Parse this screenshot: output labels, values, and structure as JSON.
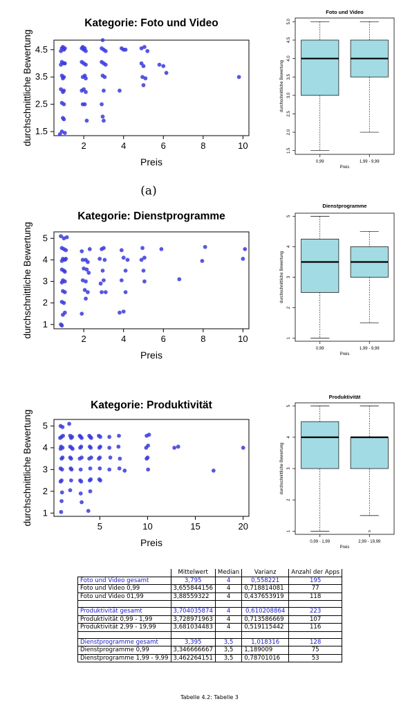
{
  "chart_data": [
    {
      "type": "scatter",
      "title": "Kategorie: Foto und Video",
      "xlabel": "Preis",
      "ylabel": "durchschnittliche Bewertung",
      "xticks": [
        "2",
        "4",
        "6",
        "8",
        "10"
      ],
      "yticks": [
        "1.5",
        "2.5",
        "3.5",
        "4.5"
      ],
      "xlim": [
        0.5,
        10.3
      ],
      "ylim": [
        1.35,
        4.85
      ],
      "points": [
        [
          0.9,
          4.55
        ],
        [
          1.0,
          4.5
        ],
        [
          0.85,
          4.45
        ],
        [
          0.95,
          4.6
        ],
        [
          1.05,
          4.55
        ],
        [
          0.9,
          4.05
        ],
        [
          1.0,
          4.0
        ],
        [
          0.85,
          3.95
        ],
        [
          1.05,
          4.0
        ],
        [
          0.9,
          3.55
        ],
        [
          1.0,
          3.5
        ],
        [
          0.95,
          3.45
        ],
        [
          0.85,
          3.05
        ],
        [
          1.0,
          3.0
        ],
        [
          0.95,
          2.95
        ],
        [
          0.9,
          2.55
        ],
        [
          1.0,
          2.5
        ],
        [
          0.95,
          2.0
        ],
        [
          1.0,
          1.95
        ],
        [
          0.9,
          1.5
        ],
        [
          1.05,
          1.45
        ],
        [
          0.8,
          1.4
        ],
        [
          1.9,
          4.55
        ],
        [
          2.0,
          4.5
        ],
        [
          2.1,
          4.45
        ],
        [
          1.95,
          4.6
        ],
        [
          2.05,
          4.55
        ],
        [
          1.9,
          4.05
        ],
        [
          2.0,
          4.0
        ],
        [
          2.1,
          3.95
        ],
        [
          1.95,
          3.5
        ],
        [
          2.05,
          3.55
        ],
        [
          2.1,
          3.45
        ],
        [
          1.9,
          3.0
        ],
        [
          2.0,
          3.05
        ],
        [
          2.1,
          2.95
        ],
        [
          1.95,
          2.5
        ],
        [
          2.05,
          2.5
        ],
        [
          2.15,
          1.9
        ],
        [
          2.9,
          4.55
        ],
        [
          3.0,
          4.5
        ],
        [
          3.1,
          4.45
        ],
        [
          2.95,
          4.85
        ],
        [
          2.9,
          4.05
        ],
        [
          3.0,
          4.0
        ],
        [
          3.1,
          3.95
        ],
        [
          2.95,
          3.55
        ],
        [
          3.05,
          3.5
        ],
        [
          3.0,
          3.0
        ],
        [
          2.9,
          2.5
        ],
        [
          2.95,
          2.05
        ],
        [
          3.0,
          1.9
        ],
        [
          3.9,
          4.55
        ],
        [
          4.0,
          4.5
        ],
        [
          4.1,
          4.5
        ],
        [
          3.8,
          3.0
        ],
        [
          4.9,
          4.55
        ],
        [
          5.05,
          4.6
        ],
        [
          5.2,
          4.45
        ],
        [
          4.9,
          4.0
        ],
        [
          5.0,
          3.9
        ],
        [
          4.95,
          3.5
        ],
        [
          5.1,
          3.45
        ],
        [
          5.0,
          3.2
        ],
        [
          5.8,
          3.95
        ],
        [
          6.0,
          3.9
        ],
        [
          6.15,
          3.65
        ],
        [
          9.8,
          3.5
        ]
      ]
    },
    {
      "type": "box",
      "title": "Foto und Video",
      "xlabel": "Preis",
      "ylabel": "durchschnittliche Bewertung",
      "categories": [
        "0,99",
        "1,99 - 9,99"
      ],
      "yticks": [
        "1.5",
        "2.0",
        "2.5",
        "3.0",
        "3.5",
        "4.0",
        "4.5",
        "5.0"
      ],
      "ylim": [
        1.4,
        5.1
      ],
      "boxes": [
        {
          "min": 1.5,
          "q1": 3.0,
          "median": 4.0,
          "q3": 4.5,
          "max": 5.0,
          "outliers": []
        },
        {
          "min": 2.0,
          "q1": 3.5,
          "median": 4.0,
          "q3": 4.5,
          "max": 5.0,
          "outliers": []
        }
      ],
      "box_color": "#a2dbe3"
    },
    {
      "type": "scatter",
      "title": "Kategorie: Dienstprogramme",
      "xlabel": "Preis",
      "ylabel": "durchschnittliche Bewertung",
      "xticks": [
        "2",
        "4",
        "6",
        "8",
        "10"
      ],
      "yticks": [
        "1",
        "2",
        "3",
        "4",
        "5"
      ],
      "xlim": [
        0.5,
        10.3
      ],
      "ylim": [
        0.8,
        5.3
      ],
      "points": [
        [
          0.85,
          5.1
        ],
        [
          1.0,
          5.0
        ],
        [
          1.15,
          5.05
        ],
        [
          0.9,
          4.55
        ],
        [
          1.0,
          4.5
        ],
        [
          1.1,
          4.45
        ],
        [
          0.95,
          4.05
        ],
        [
          1.05,
          4.0
        ],
        [
          0.9,
          3.95
        ],
        [
          1.1,
          4.05
        ],
        [
          0.9,
          3.55
        ],
        [
          1.0,
          3.5
        ],
        [
          1.05,
          3.45
        ],
        [
          0.95,
          3.05
        ],
        [
          1.05,
          3.0
        ],
        [
          0.9,
          2.95
        ],
        [
          0.95,
          2.55
        ],
        [
          1.05,
          2.5
        ],
        [
          0.9,
          2.05
        ],
        [
          1.0,
          2.0
        ],
        [
          1.05,
          1.55
        ],
        [
          0.95,
          1.45
        ],
        [
          0.85,
          1.0
        ],
        [
          0.9,
          0.95
        ],
        [
          1.9,
          4.4
        ],
        [
          2.3,
          4.5
        ],
        [
          1.95,
          4.0
        ],
        [
          2.1,
          4.0
        ],
        [
          2.2,
          3.9
        ],
        [
          2.0,
          3.6
        ],
        [
          2.15,
          3.55
        ],
        [
          2.25,
          3.4
        ],
        [
          1.95,
          3.05
        ],
        [
          2.1,
          3.0
        ],
        [
          2.05,
          2.6
        ],
        [
          2.2,
          2.5
        ],
        [
          2.1,
          2.2
        ],
        [
          1.9,
          1.5
        ],
        [
          2.9,
          4.5
        ],
        [
          3.0,
          4.55
        ],
        [
          2.8,
          4.05
        ],
        [
          3.05,
          4.0
        ],
        [
          2.95,
          3.5
        ],
        [
          3.0,
          3.05
        ],
        [
          2.85,
          2.9
        ],
        [
          3.1,
          2.5
        ],
        [
          2.9,
          2.5
        ],
        [
          3.9,
          4.45
        ],
        [
          4.0,
          4.1
        ],
        [
          4.2,
          4.0
        ],
        [
          4.1,
          3.5
        ],
        [
          3.9,
          3.05
        ],
        [
          4.1,
          2.5
        ],
        [
          4.0,
          1.6
        ],
        [
          3.8,
          1.55
        ],
        [
          4.95,
          4.55
        ],
        [
          5.05,
          4.1
        ],
        [
          4.9,
          4.0
        ],
        [
          5.0,
          3.5
        ],
        [
          5.05,
          3.0
        ],
        [
          5.9,
          4.5
        ],
        [
          6.8,
          3.1
        ],
        [
          8.1,
          4.6
        ],
        [
          7.95,
          3.95
        ],
        [
          10.1,
          4.5
        ],
        [
          10.0,
          4.05
        ]
      ]
    },
    {
      "type": "box",
      "title": "Dienstprogramme",
      "xlabel": "Preis",
      "ylabel": "durchschnittliche Bewertung",
      "categories": [
        "0,99",
        "1,99 - 9,99"
      ],
      "yticks": [
        "1",
        "2",
        "3",
        "4",
        "5"
      ],
      "ylim": [
        0.9,
        5.1
      ],
      "boxes": [
        {
          "min": 1.0,
          "q1": 2.5,
          "median": 3.5,
          "q3": 4.25,
          "max": 5.0,
          "outliers": []
        },
        {
          "min": 1.5,
          "q1": 3.0,
          "median": 3.5,
          "q3": 4.0,
          "max": 4.5,
          "outliers": []
        }
      ],
      "box_color": "#a2dbe3"
    },
    {
      "type": "scatter",
      "title": "Kategorie: Produktivität",
      "xlabel": "Preis",
      "ylabel": "durchschnittliche Bewertung",
      "xticks": [
        "5",
        "10",
        "15",
        "20"
      ],
      "yticks": [
        "1",
        "2",
        "3",
        "4",
        "5"
      ],
      "xlim": [
        0.2,
        20.6
      ],
      "ylim": [
        0.85,
        5.3
      ],
      "points": [
        [
          0.9,
          5.0
        ],
        [
          1.1,
          4.95
        ],
        [
          1.0,
          4.5
        ],
        [
          1.15,
          4.55
        ],
        [
          0.85,
          4.45
        ],
        [
          0.95,
          4.05
        ],
        [
          1.1,
          4.0
        ],
        [
          0.9,
          3.95
        ],
        [
          1.0,
          3.5
        ],
        [
          1.1,
          3.55
        ],
        [
          0.9,
          3.05
        ],
        [
          1.05,
          3.0
        ],
        [
          1.0,
          2.5
        ],
        [
          0.9,
          2.45
        ],
        [
          1.05,
          1.95
        ],
        [
          1.0,
          1.55
        ],
        [
          0.95,
          1.05
        ],
        [
          1.8,
          5.1
        ],
        [
          1.9,
          4.55
        ],
        [
          2.1,
          4.5
        ],
        [
          2.0,
          4.45
        ],
        [
          1.9,
          4.05
        ],
        [
          2.05,
          4.0
        ],
        [
          2.15,
          3.95
        ],
        [
          2.0,
          3.5
        ],
        [
          1.9,
          3.55
        ],
        [
          2.05,
          3.0
        ],
        [
          1.95,
          3.05
        ],
        [
          2.0,
          2.5
        ],
        [
          1.9,
          2.05
        ],
        [
          2.9,
          4.55
        ],
        [
          3.0,
          4.5
        ],
        [
          3.1,
          4.45
        ],
        [
          2.95,
          4.0
        ],
        [
          3.05,
          4.05
        ],
        [
          2.9,
          3.5
        ],
        [
          3.1,
          3.55
        ],
        [
          3.0,
          3.0
        ],
        [
          2.95,
          2.5
        ],
        [
          3.05,
          2.45
        ],
        [
          3.0,
          1.9
        ],
        [
          3.1,
          1.5
        ],
        [
          3.9,
          4.55
        ],
        [
          4.0,
          4.5
        ],
        [
          4.1,
          4.45
        ],
        [
          3.95,
          4.05
        ],
        [
          4.05,
          4.0
        ],
        [
          3.9,
          3.5
        ],
        [
          4.1,
          3.55
        ],
        [
          4.0,
          3.05
        ],
        [
          3.95,
          2.5
        ],
        [
          4.05,
          2.55
        ],
        [
          4.0,
          2.0
        ],
        [
          3.8,
          1.1
        ],
        [
          4.9,
          4.55
        ],
        [
          5.05,
          4.5
        ],
        [
          4.95,
          4.0
        ],
        [
          5.05,
          4.05
        ],
        [
          4.9,
          3.5
        ],
        [
          5.0,
          3.55
        ],
        [
          5.0,
          3.05
        ],
        [
          4.95,
          2.55
        ],
        [
          5.05,
          2.5
        ],
        [
          6.0,
          4.5
        ],
        [
          6.0,
          4.0
        ],
        [
          6.1,
          3.55
        ],
        [
          6.0,
          3.0
        ],
        [
          7.0,
          4.55
        ],
        [
          6.95,
          4.05
        ],
        [
          7.1,
          3.5
        ],
        [
          7.05,
          3.05
        ],
        [
          7.6,
          2.95
        ],
        [
          9.9,
          4.55
        ],
        [
          9.85,
          4.0
        ],
        [
          10.05,
          4.1
        ],
        [
          10.15,
          4.6
        ],
        [
          10.0,
          3.55
        ],
        [
          9.9,
          3.5
        ],
        [
          10.05,
          3.0
        ],
        [
          12.8,
          4.0
        ],
        [
          13.2,
          4.05
        ],
        [
          16.9,
          2.95
        ],
        [
          20.0,
          4.0
        ]
      ]
    },
    {
      "type": "box",
      "title": "Produktivität",
      "xlabel": "Preis",
      "ylabel": "durchschnittliche Bewertung",
      "categories": [
        "0,99 - 1,99",
        "2,99 - 19,99"
      ],
      "yticks": [
        "1",
        "2",
        "3",
        "4",
        "5"
      ],
      "ylim": [
        0.9,
        5.1
      ],
      "boxes": [
        {
          "min": 1.0,
          "q1": 3.0,
          "median": 4.0,
          "q3": 4.5,
          "max": 5.0,
          "outliers": []
        },
        {
          "min": 1.5,
          "q1": 3.0,
          "median": 4.0,
          "q3": 4.0,
          "max": 5.0,
          "outliers": [
            1.0
          ]
        }
      ],
      "box_color": "#a2dbe3"
    }
  ],
  "figure": {
    "sublabel": "(a)",
    "caption": "Tabelle 4.2: Tabelle 3",
    "point_color": "#3a3adc"
  },
  "table": {
    "headers": [
      "",
      "Mittelwert",
      "Median",
      "Varianz",
      "Anzahl der Apps"
    ],
    "rows": [
      {
        "highlight": true,
        "cells": [
          "Foto und Video gesamt",
          "3,795",
          "4",
          "0,558221",
          "195"
        ]
      },
      {
        "highlight": false,
        "cells": [
          "Foto und Video 0,99",
          "3,655844156",
          "4",
          "0,718814081",
          "77"
        ]
      },
      {
        "highlight": false,
        "cells": [
          "Foto und Video 01,99",
          "3,88559322",
          "4",
          "0,437653919",
          "118"
        ]
      },
      {
        "blank": true,
        "cells": [
          "",
          "",
          "",
          "",
          ""
        ]
      },
      {
        "highlight": true,
        "cells": [
          "Produktivität gesamt",
          "3,704035874",
          "4",
          "0,610208864",
          "223"
        ]
      },
      {
        "highlight": false,
        "cells": [
          "Produktivität 0,99 - 1,99",
          "3,728971963",
          "4",
          "0,713586669",
          "107"
        ]
      },
      {
        "highlight": false,
        "cells": [
          "Produktivität 2,99 - 19,99",
          "3,681034483",
          "4",
          "0,519115442",
          "116"
        ]
      },
      {
        "blank": true,
        "cells": [
          "",
          "",
          "",
          "",
          ""
        ]
      },
      {
        "highlight": true,
        "cells": [
          "Dienstprogramme gesamt",
          "3,395",
          "3,5",
          "1,018316",
          "128"
        ]
      },
      {
        "highlight": false,
        "cells": [
          "Dienstprogramme 0,99",
          "3,346666667",
          "3,5",
          "1,189009",
          "75"
        ]
      },
      {
        "highlight": false,
        "cells": [
          "Dienstprogramme 1,99 - 9,99",
          "3,462264151",
          "3,5",
          "0,78701016",
          "53"
        ]
      }
    ],
    "highlight_color": "#1b1bc8"
  }
}
